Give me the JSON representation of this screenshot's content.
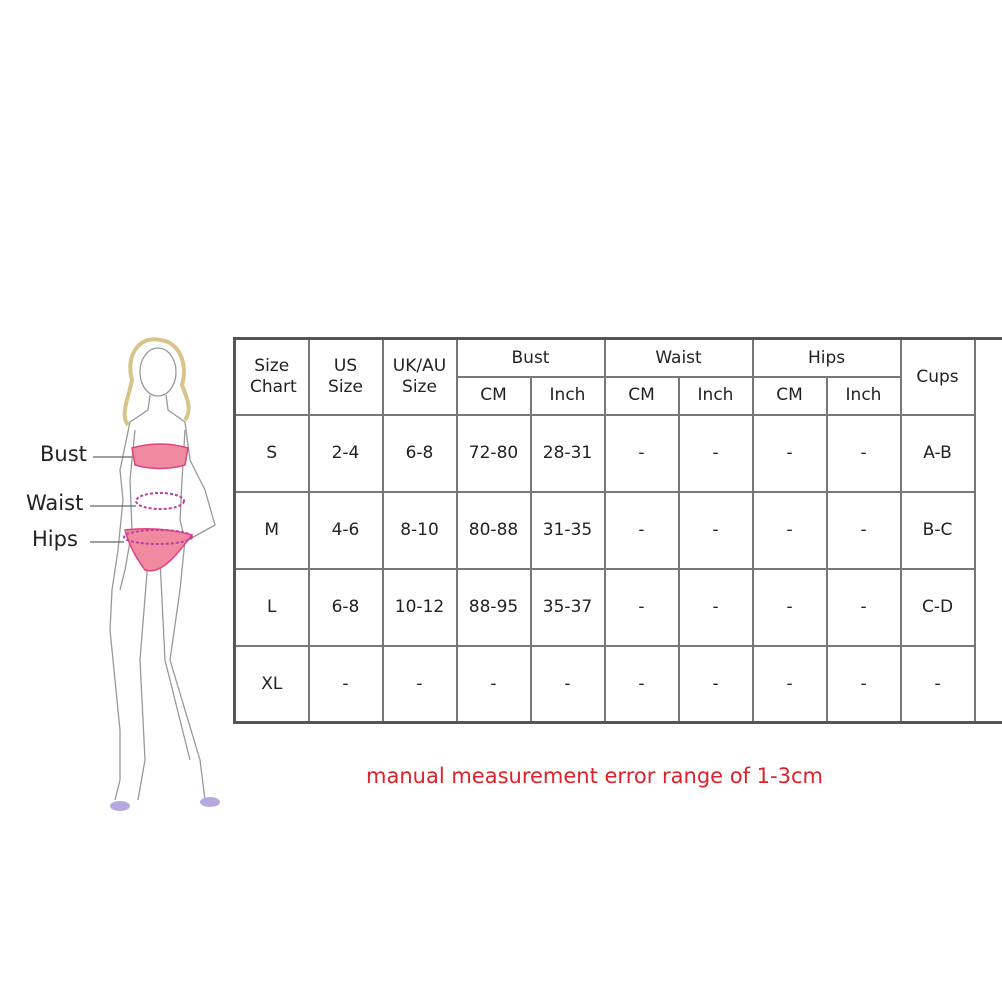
{
  "figure": {
    "labels": {
      "bust": "Bust",
      "waist": "Waist",
      "hips": "Hips"
    }
  },
  "table": {
    "headers": {
      "size_chart": "Size Chart",
      "us_size": "US Size",
      "ukau_size": "UK/AU Size",
      "bust": "Bust",
      "waist": "Waist",
      "hips": "Hips",
      "cups": "Cups",
      "cm": "CM",
      "inch": "Inch"
    },
    "rows": [
      [
        "S",
        "2-4",
        "6-8",
        "72-80",
        "28-31",
        "-",
        "-",
        "-",
        "-",
        "A-B"
      ],
      [
        "M",
        "4-6",
        "8-10",
        "80-88",
        "31-35",
        "-",
        "-",
        "-",
        "-",
        "B-C"
      ],
      [
        "L",
        "6-8",
        "10-12",
        "88-95",
        "35-37",
        "-",
        "-",
        "-",
        "-",
        "C-D"
      ],
      [
        "XL",
        "-",
        "-",
        "-",
        "-",
        "-",
        "-",
        "-",
        "-",
        "-"
      ]
    ]
  },
  "note": "manual measurement error range of 1-3cm",
  "colors": {
    "note": "#e0202a",
    "measure_band": "#e0457a"
  }
}
